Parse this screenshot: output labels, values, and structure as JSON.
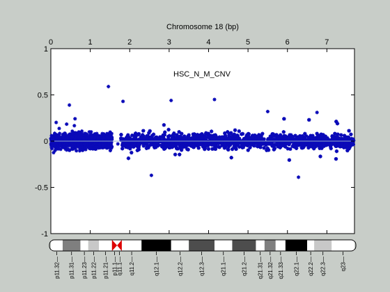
{
  "chart_data": {
    "type": "scatter",
    "title": "Chromosome 18 (bp)",
    "annotation": "HSC_N_M_CNV",
    "xlim": [
      0,
      7.7
    ],
    "ylim": [
      -1,
      1
    ],
    "xticks": [
      0,
      1,
      2,
      3,
      4,
      5,
      6,
      7
    ],
    "yticks": [
      -1,
      -0.5,
      0,
      0.5,
      1
    ],
    "ytick_labels": [
      "-1",
      "-0.5",
      "0",
      "0.5",
      "1"
    ],
    "grid": false,
    "baseline": 0,
    "gap": [
      1.55,
      1.78
    ],
    "segments": [
      {
        "x0": 0.0,
        "x1": 1.55,
        "noise": 0.055
      },
      {
        "x0": 1.78,
        "x1": 7.68,
        "noise": 0.055
      }
    ],
    "notable_points": [
      {
        "x": 1.46,
        "y": 0.59
      },
      {
        "x": 1.83,
        "y": 0.43
      },
      {
        "x": 1.7,
        "y": -0.03
      },
      {
        "x": 3.05,
        "y": 0.44
      },
      {
        "x": 4.15,
        "y": 0.45
      },
      {
        "x": 0.47,
        "y": 0.39
      },
      {
        "x": 2.55,
        "y": -0.37
      },
      {
        "x": 6.28,
        "y": -0.39
      },
      {
        "x": 6.75,
        "y": 0.31
      },
      {
        "x": 5.5,
        "y": 0.32
      }
    ],
    "colors": {
      "points": "#0a0ab8",
      "baseline": "#8fa7c8",
      "background": "#c8cdc8",
      "plot": "#ffffff"
    },
    "ideogram": {
      "bands": [
        {
          "name": "p11.32",
          "x0": 0.0,
          "x1": 0.3,
          "shade": "#ffffff"
        },
        {
          "name": "p11.31",
          "x0": 0.3,
          "x1": 0.75,
          "shade": "#7f7f7f"
        },
        {
          "name": "p11.23",
          "x0": 0.75,
          "x1": 0.95,
          "shade": "#ffffff"
        },
        {
          "name": "p11.22",
          "x0": 0.95,
          "x1": 1.22,
          "shade": "#c8c8c8"
        },
        {
          "name": "p11.21",
          "x0": 1.22,
          "x1": 1.55,
          "shade": "#ffffff"
        },
        {
          "name": "p11.1",
          "x0": 1.55,
          "x1": 1.68,
          "shade": "centromere"
        },
        {
          "name": "q11.1",
          "x0": 1.68,
          "x1": 1.8,
          "shade": "centromere"
        },
        {
          "name": "q11.2",
          "x0": 1.8,
          "x1": 2.3,
          "shade": "#ffffff"
        },
        {
          "name": "q12.1",
          "x0": 2.3,
          "x1": 3.05,
          "shade": "#000000"
        },
        {
          "name": "q12.2",
          "x0": 3.05,
          "x1": 3.5,
          "shade": "#ffffff"
        },
        {
          "name": "q12.3",
          "x0": 3.5,
          "x1": 4.15,
          "shade": "#4d4d4d"
        },
        {
          "name": "q21.1",
          "x0": 4.15,
          "x1": 4.6,
          "shade": "#ffffff"
        },
        {
          "name": "q21.2",
          "x0": 4.6,
          "x1": 5.2,
          "shade": "#4d4d4d"
        },
        {
          "name": "q21.31",
          "x0": 5.2,
          "x1": 5.42,
          "shade": "#ffffff"
        },
        {
          "name": "q21.32",
          "x0": 5.42,
          "x1": 5.7,
          "shade": "#7f7f7f"
        },
        {
          "name": "q21.33",
          "x0": 5.7,
          "x1": 5.95,
          "shade": "#ffffff"
        },
        {
          "name": "q22.1",
          "x0": 5.95,
          "x1": 6.5,
          "shade": "#000000"
        },
        {
          "name": "q22.2",
          "x0": 6.5,
          "x1": 6.68,
          "shade": "#ffffff"
        },
        {
          "name": "q22.3",
          "x0": 6.68,
          "x1": 7.12,
          "shade": "#c8c8c8"
        },
        {
          "name": "q23",
          "x0": 7.12,
          "x1": 7.7,
          "shade": "#ffffff"
        }
      ],
      "centromere_color": "#dd0000"
    }
  }
}
